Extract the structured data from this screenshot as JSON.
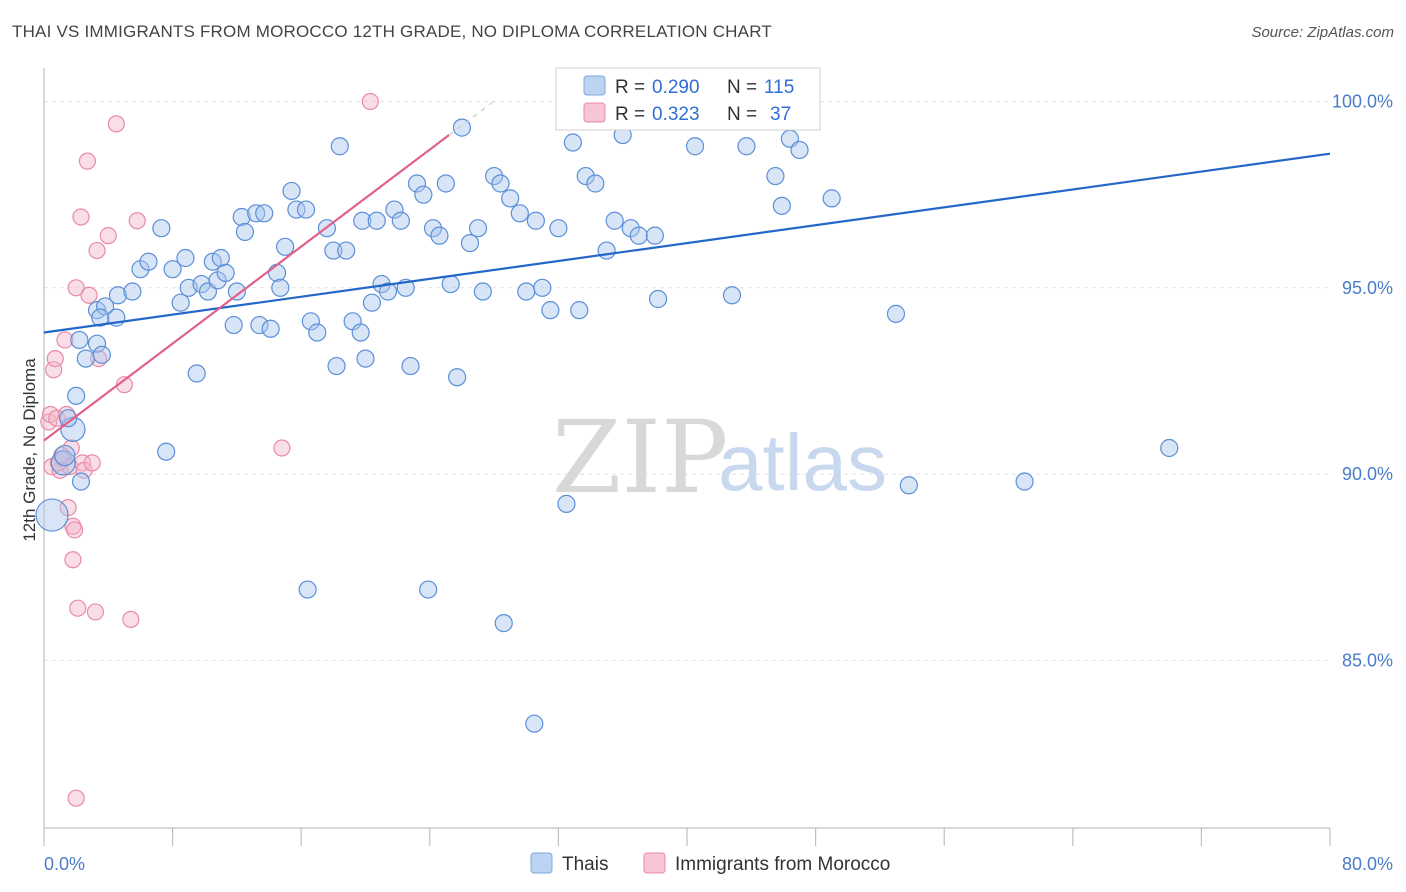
{
  "header": {
    "title": "THAI VS IMMIGRANTS FROM MOROCCO 12TH GRADE, NO DIPLOMA CORRELATION CHART",
    "source": "Source: ZipAtlas.com"
  },
  "watermark": {
    "zip": "ZIP",
    "atlas": "atlas"
  },
  "legend_top": {
    "rows": [
      {
        "r_label": "R =",
        "r_value": "0.290",
        "n_label": "N =",
        "n_value": "115"
      },
      {
        "r_label": "R =",
        "r_value": "0.323",
        "n_label": "N =",
        "n_value": "37"
      }
    ]
  },
  "legend_bottom": {
    "items": [
      {
        "label": "Thais"
      },
      {
        "label": "Immigrants from Morocco"
      }
    ]
  },
  "chart_data": {
    "type": "scatter",
    "ylabel": "12th Grade, No Diploma",
    "xlabel": "",
    "xlim": [
      0,
      80
    ],
    "ylim": [
      80.5,
      100.9
    ],
    "x_tick_labels": [
      "0.0%",
      "80.0%"
    ],
    "y_ticks": [
      85,
      90,
      95,
      100
    ],
    "y_tick_labels": [
      "85.0%",
      "90.0%",
      "95.0%",
      "100.0%"
    ],
    "grid": true,
    "colors": {
      "thais": "#5b8fd8",
      "morocco": "#e88aa8",
      "thais_line": "#2368c8",
      "morocco_line": "#e0608a"
    },
    "series": [
      {
        "name": "Thais",
        "trend": {
          "x": [
            0,
            80
          ],
          "y": [
            93.8,
            98.6
          ]
        },
        "points": [
          [
            0.5,
            88.9
          ],
          [
            1.2,
            90.3
          ],
          [
            1.8,
            91.2
          ],
          [
            1.3,
            90.5
          ],
          [
            1.5,
            91.5
          ],
          [
            2.0,
            92.1
          ],
          [
            2.3,
            89.8
          ],
          [
            2.2,
            93.6
          ],
          [
            2.6,
            93.1
          ],
          [
            3.3,
            93.5
          ],
          [
            3.6,
            93.2
          ],
          [
            3.3,
            94.4
          ],
          [
            3.8,
            94.5
          ],
          [
            3.5,
            94.2
          ],
          [
            4.5,
            94.2
          ],
          [
            4.6,
            94.8
          ],
          [
            5.5,
            94.9
          ],
          [
            6.0,
            95.5
          ],
          [
            6.5,
            95.7
          ],
          [
            7.3,
            96.6
          ],
          [
            7.6,
            90.6
          ],
          [
            8.0,
            95.5
          ],
          [
            8.5,
            94.6
          ],
          [
            8.8,
            95.8
          ],
          [
            9.0,
            95.0
          ],
          [
            9.5,
            92.7
          ],
          [
            9.8,
            95.1
          ],
          [
            10.2,
            94.9
          ],
          [
            10.5,
            95.7
          ],
          [
            10.8,
            95.2
          ],
          [
            11.0,
            95.8
          ],
          [
            11.3,
            95.4
          ],
          [
            11.8,
            94.0
          ],
          [
            12.0,
            94.9
          ],
          [
            12.3,
            96.9
          ],
          [
            12.5,
            96.5
          ],
          [
            13.2,
            97.0
          ],
          [
            13.4,
            94.0
          ],
          [
            13.7,
            97.0
          ],
          [
            14.1,
            93.9
          ],
          [
            14.5,
            95.4
          ],
          [
            14.7,
            95.0
          ],
          [
            15.0,
            96.1
          ],
          [
            15.4,
            97.6
          ],
          [
            15.7,
            97.1
          ],
          [
            16.3,
            97.1
          ],
          [
            16.4,
            86.9
          ],
          [
            16.6,
            94.1
          ],
          [
            17.0,
            93.8
          ],
          [
            17.6,
            96.6
          ],
          [
            18.0,
            96.0
          ],
          [
            18.4,
            98.8
          ],
          [
            18.8,
            96.0
          ],
          [
            18.2,
            92.9
          ],
          [
            19.2,
            94.1
          ],
          [
            19.7,
            93.8
          ],
          [
            19.8,
            96.8
          ],
          [
            20.0,
            93.1
          ],
          [
            20.4,
            94.6
          ],
          [
            20.7,
            96.8
          ],
          [
            21.0,
            95.1
          ],
          [
            21.4,
            94.9
          ],
          [
            21.8,
            97.1
          ],
          [
            22.2,
            96.8
          ],
          [
            22.5,
            95.0
          ],
          [
            22.8,
            92.9
          ],
          [
            23.2,
            97.8
          ],
          [
            23.6,
            97.5
          ],
          [
            23.9,
            86.9
          ],
          [
            24.2,
            96.6
          ],
          [
            24.6,
            96.4
          ],
          [
            25.0,
            97.8
          ],
          [
            25.3,
            95.1
          ],
          [
            25.7,
            92.6
          ],
          [
            26.0,
            99.3
          ],
          [
            26.5,
            96.2
          ],
          [
            27.0,
            96.6
          ],
          [
            27.3,
            94.9
          ],
          [
            28.0,
            98.0
          ],
          [
            28.4,
            97.8
          ],
          [
            28.6,
            86.0
          ],
          [
            29.0,
            97.4
          ],
          [
            29.6,
            97.0
          ],
          [
            30.0,
            94.9
          ],
          [
            30.6,
            96.8
          ],
          [
            31.0,
            95.0
          ],
          [
            31.5,
            94.4
          ],
          [
            32.0,
            96.6
          ],
          [
            32.5,
            89.2
          ],
          [
            32.9,
            98.9
          ],
          [
            33.3,
            94.4
          ],
          [
            33.7,
            98.0
          ],
          [
            34.3,
            97.8
          ],
          [
            35.0,
            96.0
          ],
          [
            35.5,
            96.8
          ],
          [
            36.0,
            99.1
          ],
          [
            36.5,
            96.6
          ],
          [
            37.0,
            96.4
          ],
          [
            38.0,
            96.4
          ],
          [
            38.2,
            94.7
          ],
          [
            40.0,
            100.0
          ],
          [
            40.5,
            98.8
          ],
          [
            42.8,
            94.8
          ],
          [
            43.7,
            98.8
          ],
          [
            45.5,
            98.0
          ],
          [
            45.9,
            97.2
          ],
          [
            46.4,
            99.0
          ],
          [
            47.0,
            98.7
          ],
          [
            47.4,
            100.0
          ],
          [
            49.0,
            97.4
          ],
          [
            53.0,
            94.3
          ],
          [
            53.8,
            89.7
          ],
          [
            61.0,
            89.8
          ],
          [
            70.0,
            90.7
          ],
          [
            30.5,
            83.3
          ]
        ]
      },
      {
        "name": "Immigrants from Morocco",
        "trend": {
          "x": [
            0,
            25.2
          ],
          "y": [
            90.9,
            99.1
          ]
        },
        "points": [
          [
            0.3,
            91.4
          ],
          [
            0.4,
            91.6
          ],
          [
            0.5,
            90.2
          ],
          [
            0.6,
            92.8
          ],
          [
            0.7,
            93.1
          ],
          [
            0.8,
            91.5
          ],
          [
            1.0,
            90.1
          ],
          [
            1.2,
            90.4
          ],
          [
            1.3,
            93.6
          ],
          [
            1.4,
            91.6
          ],
          [
            1.5,
            89.1
          ],
          [
            1.6,
            90.2
          ],
          [
            1.7,
            90.7
          ],
          [
            1.8,
            88.6
          ],
          [
            1.9,
            88.5
          ],
          [
            1.8,
            87.7
          ],
          [
            2.0,
            95.0
          ],
          [
            2.1,
            86.4
          ],
          [
            2.3,
            96.9
          ],
          [
            2.4,
            90.3
          ],
          [
            2.5,
            90.1
          ],
          [
            2.7,
            98.4
          ],
          [
            2.8,
            94.8
          ],
          [
            3.0,
            90.3
          ],
          [
            3.2,
            86.3
          ],
          [
            3.3,
            96.0
          ],
          [
            3.4,
            93.1
          ],
          [
            4.0,
            96.4
          ],
          [
            4.5,
            99.4
          ],
          [
            5.0,
            92.4
          ],
          [
            5.4,
            86.1
          ],
          [
            5.8,
            96.8
          ],
          [
            2.0,
            81.3
          ],
          [
            14.8,
            90.7
          ],
          [
            20.3,
            100.0
          ],
          [
            0.9,
            90.3
          ],
          [
            1.1,
            90.5
          ]
        ]
      }
    ]
  }
}
